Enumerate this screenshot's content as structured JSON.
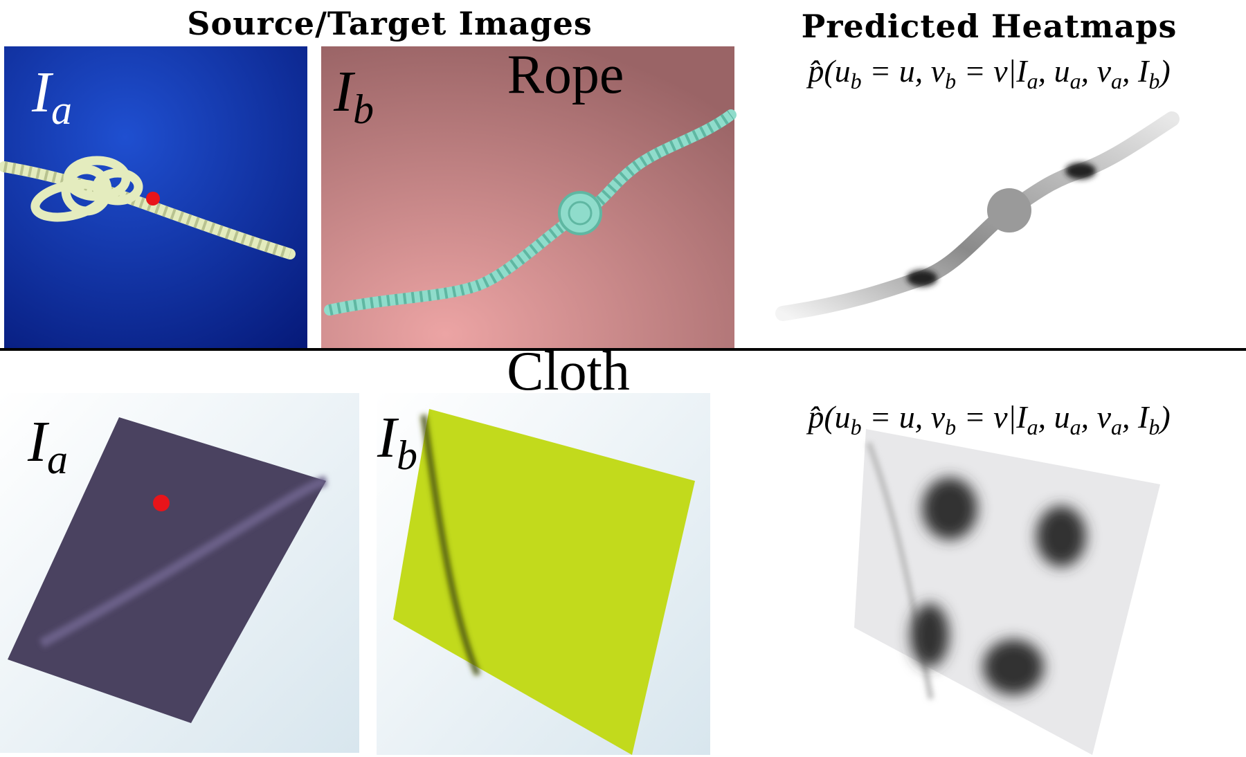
{
  "header": {
    "left_title": "Source/Target Images",
    "right_title": "Predicted Heatmaps"
  },
  "rows": [
    {
      "label": "Rope",
      "source_label": {
        "symbol": "I",
        "subscript": "a"
      },
      "target_label": {
        "symbol": "I",
        "subscript": "b"
      },
      "heatmap_formula": [
        "p̂(u",
        "b",
        " = u, v",
        "b",
        " = v|I",
        "a",
        ", u",
        "a",
        ", v",
        "a",
        ", I",
        "b",
        ")"
      ]
    },
    {
      "label": "Cloth",
      "source_label": {
        "symbol": "I",
        "subscript": "a"
      },
      "target_label": {
        "symbol": "I",
        "subscript": "b"
      },
      "heatmap_formula": [
        "p̂(u",
        "b",
        " = u, v",
        "b",
        " = v|I",
        "a",
        ", u",
        "a",
        ", v",
        "a",
        ", I",
        "b",
        ")"
      ]
    }
  ]
}
